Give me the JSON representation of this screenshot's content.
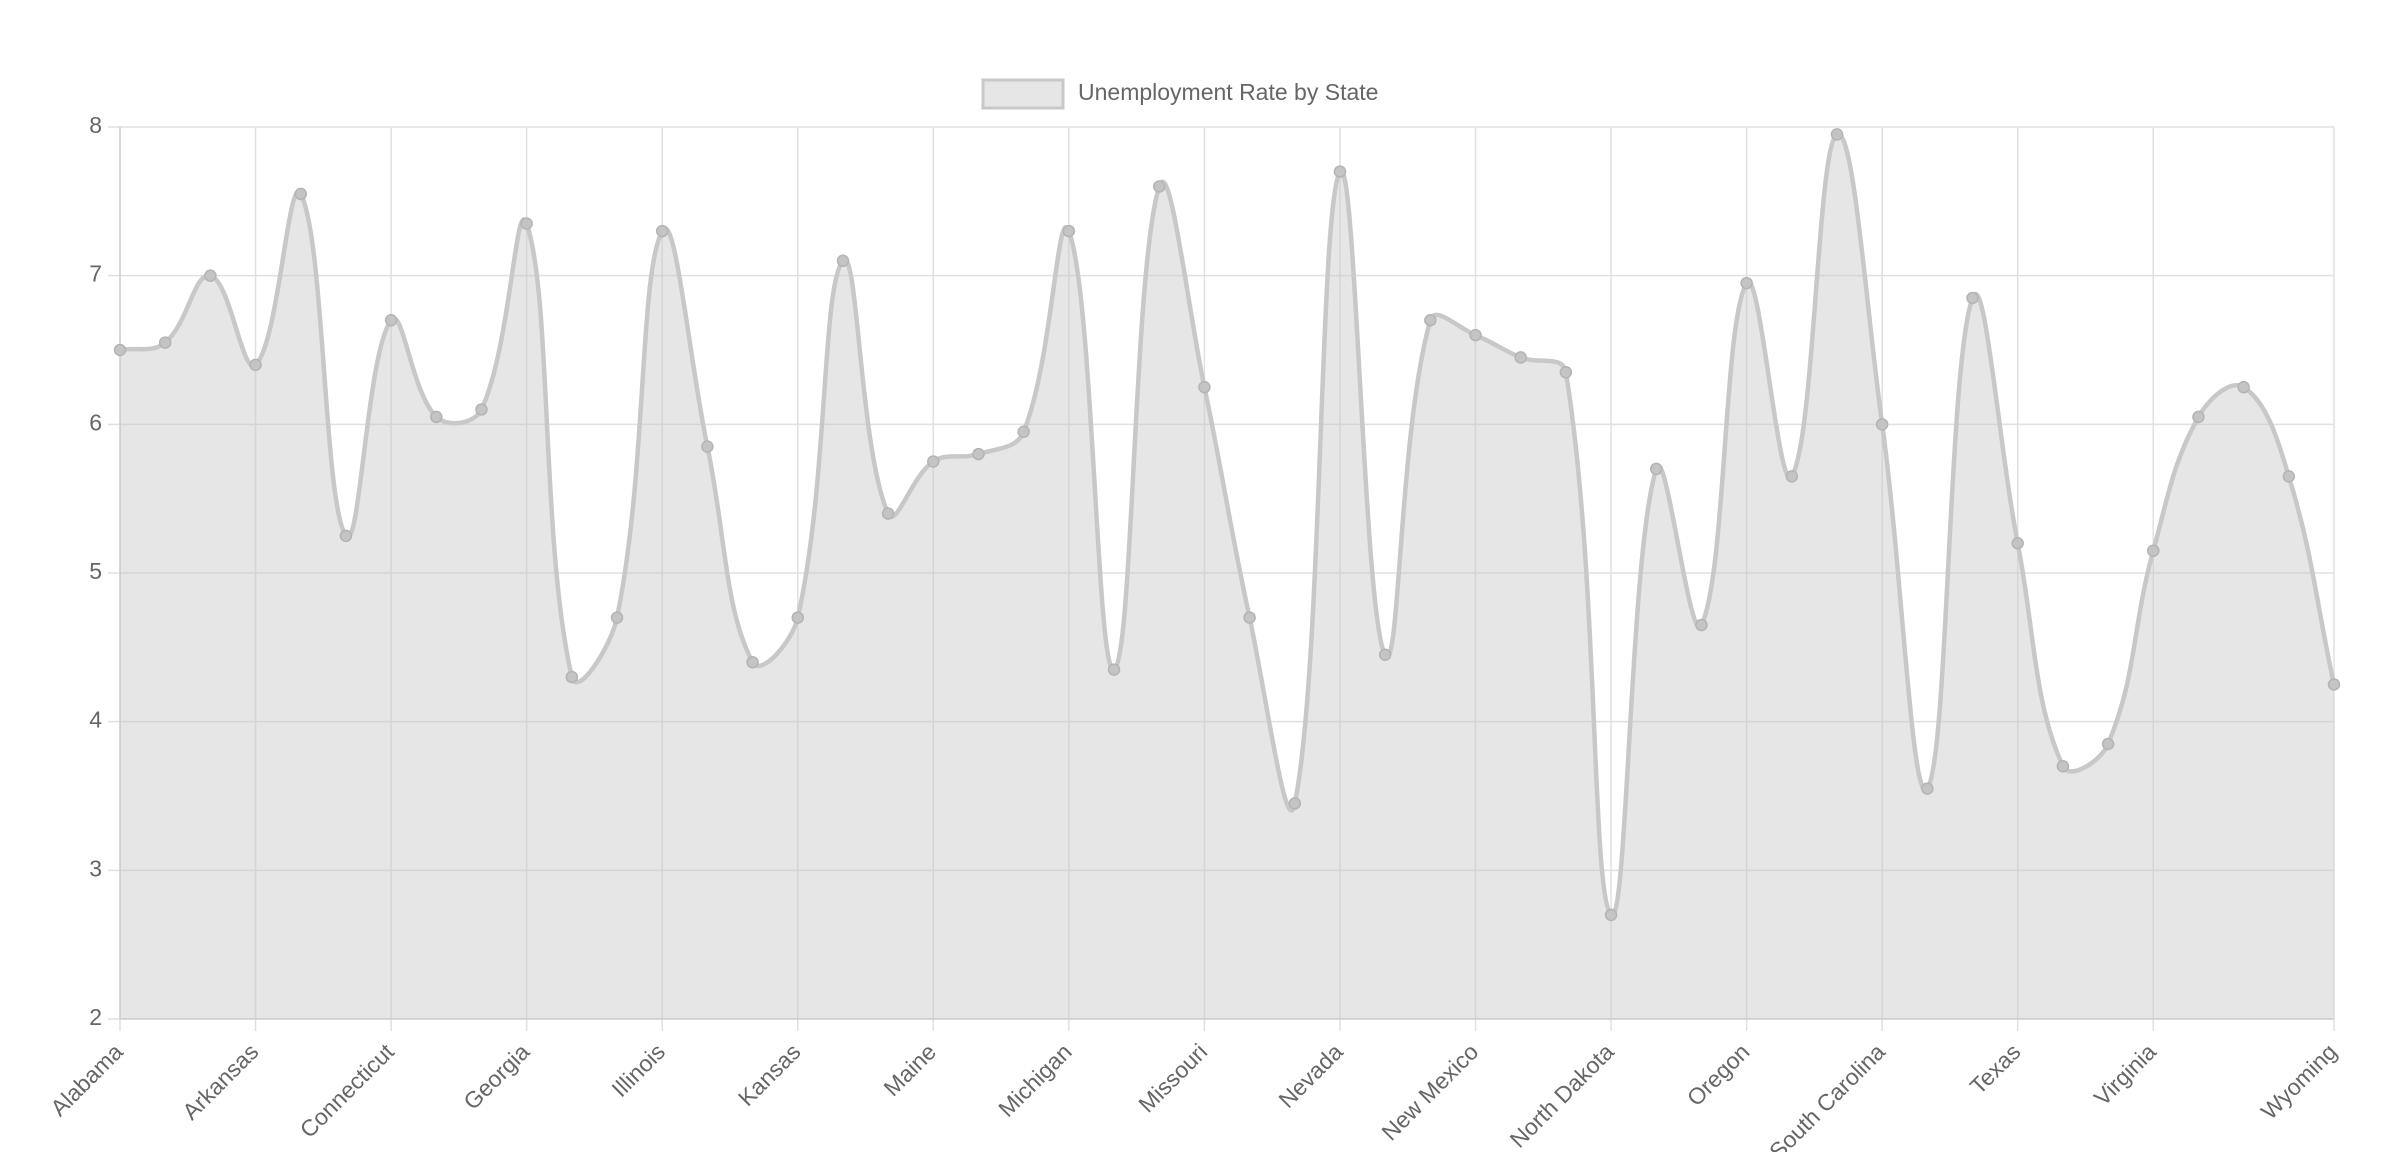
{
  "chart_data": {
    "type": "line",
    "categories": [
      "Alabama",
      null,
      null,
      "Arkansas",
      null,
      null,
      "Connecticut",
      null,
      null,
      "Georgia",
      null,
      null,
      "Illinois",
      null,
      null,
      "Kansas",
      null,
      null,
      "Maine",
      null,
      null,
      "Michigan",
      null,
      null,
      "Missouri",
      null,
      null,
      "Nevada",
      null,
      null,
      "New Mexico",
      null,
      null,
      "North Dakota",
      null,
      null,
      "Oregon",
      null,
      null,
      "South Carolina",
      null,
      null,
      "Texas",
      null,
      null,
      "Virginia",
      null,
      null,
      null,
      "Wyoming"
    ],
    "series": [
      {
        "name": "Unemployment Rate by State",
        "color": "#c8c8c8",
        "values": [
          6.5,
          6.55,
          7.0,
          6.4,
          7.55,
          5.25,
          6.7,
          6.05,
          6.1,
          7.35,
          4.3,
          4.7,
          7.3,
          5.85,
          4.4,
          4.7,
          7.1,
          5.4,
          5.75,
          5.8,
          5.95,
          7.3,
          4.35,
          7.6,
          6.25,
          4.7,
          3.45,
          7.7,
          4.45,
          6.7,
          6.6,
          6.45,
          6.35,
          2.7,
          5.7,
          4.65,
          6.95,
          5.65,
          7.95,
          6.0,
          3.55,
          6.85,
          5.2,
          3.7,
          3.85,
          5.15,
          6.05,
          6.25,
          5.65,
          4.25
        ]
      }
    ],
    "ylim": [
      2,
      8
    ],
    "yticks": [
      2,
      3,
      4,
      5,
      6,
      7,
      8
    ],
    "grid": true,
    "legend": "top"
  }
}
